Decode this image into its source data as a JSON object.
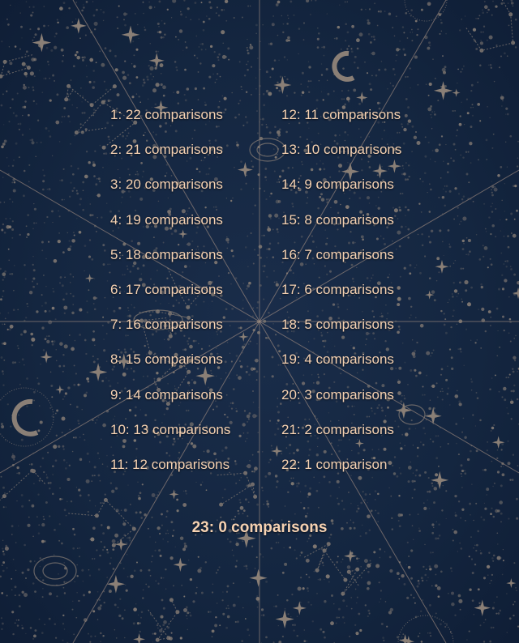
{
  "colors": {
    "background": "#13243f",
    "text": "#f6d2b2",
    "decor": "#8a7f76"
  },
  "left_column": [
    "1: 22 comparisons",
    "2: 21 comparisons",
    "3: 20 comparisons",
    "4: 19 comparisons",
    "5: 18 comparisons",
    "6: 17 comparisons",
    "7: 16 comparisons",
    "8: 15 comparisons",
    "9: 14 comparisons",
    "10: 13 comparisons",
    "11: 12 comparisons"
  ],
  "right_column": [
    "12: 11 comparisons",
    "13: 10 comparisons",
    "14: 9 comparisons",
    "15: 8 comparisons",
    "16: 7 comparisons",
    "17: 6 comparisons",
    "18: 5 comparisons",
    "19: 4 comparisons",
    "20: 3 comparisons",
    "21: 2 comparisons",
    "22: 1 comparison"
  ],
  "final": "23: 0 comparisons"
}
